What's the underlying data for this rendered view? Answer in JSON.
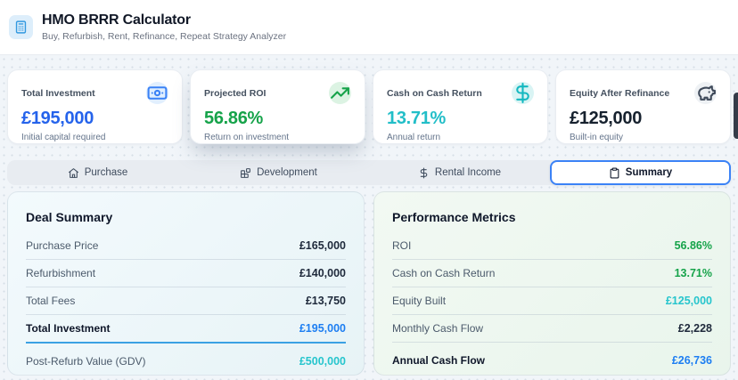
{
  "header": {
    "title": "HMO BRRR Calculator",
    "subtitle": "Buy, Refurbish, Rent, Refinance, Repeat Strategy Analyzer"
  },
  "stat_cards": [
    {
      "label": "Total Investment",
      "value": "£195,000",
      "description": "Initial capital required",
      "icon": "banknote-icon",
      "value_color": "#2563eb",
      "icon_color": "#3b82f6",
      "icon_bg": "#e1effe",
      "elevated": ""
    },
    {
      "label": "Projected ROI",
      "value": "56.86%",
      "description": "Return on investment",
      "icon": "trending-up-icon",
      "value_color": "#16a34a",
      "icon_color": "#16a34a",
      "icon_bg": "#dcf3e3",
      "elevated": "card-elevated"
    },
    {
      "label": "Cash on Cash Return",
      "value": "13.71%",
      "description": "Annual return",
      "icon": "dollar-icon",
      "value_color": "#22bec8",
      "icon_color": "#14b8c0",
      "icon_bg": "#d9f4f4",
      "elevated": ""
    },
    {
      "label": "Equity After Refinance",
      "value": "£125,000",
      "description": "Built-in equity",
      "icon": "piggy-bank-icon",
      "value_color": "#16212e",
      "icon_color": "#3f4a5a",
      "icon_bg": "#eef1f4",
      "elevated": ""
    }
  ],
  "tabs": [
    {
      "label": "Purchase",
      "icon": "home-icon",
      "state_class": ""
    },
    {
      "label": "Development",
      "icon": "blocks-icon",
      "state_class": ""
    },
    {
      "label": "Rental Income",
      "icon": "dollar-icon",
      "state_class": ""
    },
    {
      "label": "Summary",
      "icon": "clipboard-icon",
      "state_class": "tab-active"
    }
  ],
  "deal_summary": {
    "title": "Deal Summary",
    "rows": [
      {
        "label": "Purchase Price",
        "value": "£165,000"
      },
      {
        "label": "Refurbishment",
        "value": "£140,000"
      },
      {
        "label": "Total Fees",
        "value": "£13,750"
      },
      {
        "label": "Total Investment",
        "value": "£195,000",
        "row_class": "row-total-blue",
        "label_class": "label-bold",
        "value_class": "v-blue"
      },
      {
        "label": "Post-Refurb Value (GDV)",
        "value": "£500,000",
        "row_class": "row-last",
        "value_class": "v-teal"
      }
    ]
  },
  "performance_metrics": {
    "title": "Performance Metrics",
    "rows": [
      {
        "label": "ROI",
        "value": "56.86%",
        "value_class": "v-green"
      },
      {
        "label": "Cash on Cash Return",
        "value": "13.71%",
        "value_class": "v-green"
      },
      {
        "label": "Equity Built",
        "value": "£125,000",
        "value_class": "v-teal"
      },
      {
        "label": "Monthly Cash Flow",
        "value": "£2,228"
      },
      {
        "label": "Annual Cash Flow",
        "value": "£26,736",
        "row_class": "row-last",
        "label_class": "label-bold",
        "value_class": "v-blue"
      }
    ]
  },
  "colors": {
    "accent_blue": "#2563eb",
    "bright_blue": "#1d7ef2",
    "green": "#16a34a",
    "teal": "#26c5cd",
    "dark": "#0f172a",
    "tab_active_border": "#3b82f6",
    "total_underline": "#3ba1e3"
  }
}
